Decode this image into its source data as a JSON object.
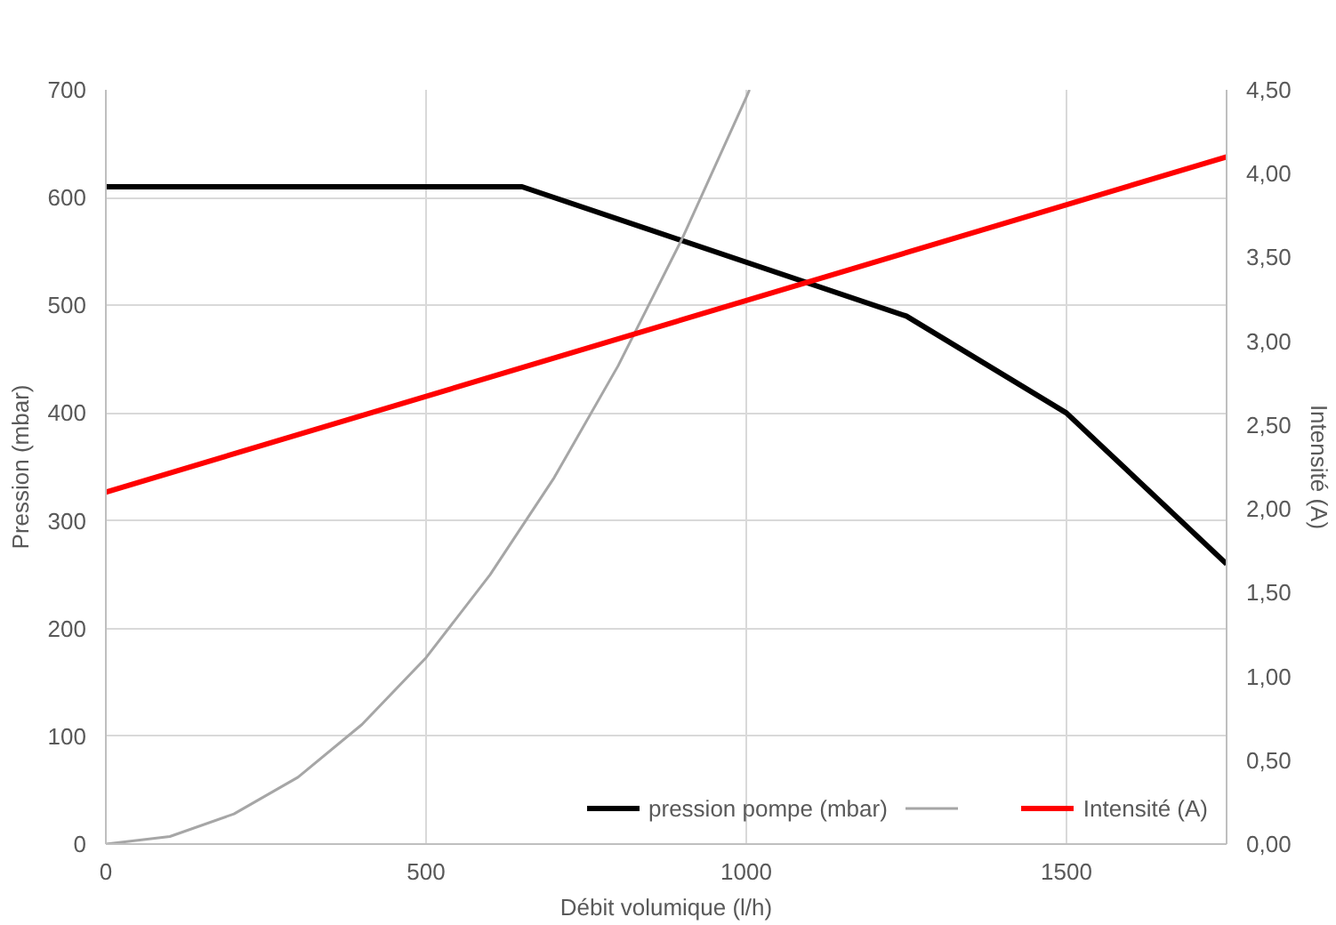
{
  "chart_data": {
    "type": "line",
    "xlabel": "Débit volumique (l/h)",
    "ylabel": "Pression (mbar)",
    "y2label": "Intensité (A)",
    "xlim": [
      0,
      1750
    ],
    "xticks": [
      0,
      500,
      1000,
      1500
    ],
    "ylim": [
      0,
      700
    ],
    "yticks": [
      0,
      100,
      200,
      300,
      400,
      500,
      600,
      700
    ],
    "y2lim": [
      0,
      4.5
    ],
    "y2ticks": [
      {
        "value": 0,
        "label": "0,00"
      },
      {
        "value": 0.5,
        "label": "0,50"
      },
      {
        "value": 1,
        "label": "1,00"
      },
      {
        "value": 1.5,
        "label": "1,50"
      },
      {
        "value": 2,
        "label": "2,00"
      },
      {
        "value": 2.5,
        "label": "2,50"
      },
      {
        "value": 3,
        "label": "3,00"
      },
      {
        "value": 3.5,
        "label": "3,50"
      },
      {
        "value": 4,
        "label": "4,00"
      },
      {
        "value": 4.5,
        "label": "4,50"
      }
    ],
    "grid": true,
    "legend": "bottom right",
    "marker": "none",
    "line_style": "solid",
    "series": [
      {
        "name": "pression pompe (mbar)",
        "color": "#000000",
        "x": [
          0,
          600,
          650,
          1250,
          1500,
          1750
        ],
        "values": [
          610,
          610,
          610,
          490,
          400,
          260
        ]
      },
      {
        "color": "#a6a6a6",
        "x": [
          0,
          100,
          200,
          300,
          400,
          500,
          600,
          700,
          800,
          900,
          1000,
          1005
        ],
        "values": [
          0,
          7,
          28,
          62,
          111,
          173,
          250,
          340,
          444,
          562,
          693,
          700
        ]
      },
      {
        "name": "Intensité (A)",
        "color": "#ff0000",
        "axis": "y2",
        "x": [
          0,
          1750
        ],
        "values": [
          2.1,
          4.1
        ]
      }
    ]
  }
}
